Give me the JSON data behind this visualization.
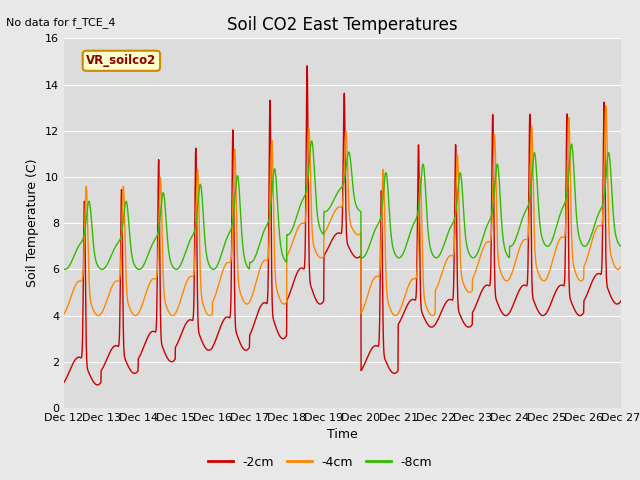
{
  "title": "Soil CO2 East Temperatures",
  "no_data_label": "No data for f_TCE_4",
  "vr_label": "VR_soilco2",
  "xlabel": "Time",
  "ylabel": "Soil Temperature (C)",
  "ylim": [
    0,
    16
  ],
  "fig_bg": "#e8e8e8",
  "axes_bg": "#dcdcdc",
  "colors": {
    "-2cm": "#cc0000",
    "-4cm": "#ff8800",
    "-8cm": "#33bb00"
  },
  "x_tick_labels": [
    "Dec 12",
    "Dec 13",
    "Dec 14",
    "Dec 15",
    "Dec 16",
    "Dec 17",
    "Dec 18",
    "Dec 19",
    "Dec 20",
    "Dec 21",
    "Dec 22",
    "Dec 23",
    "Dec 24",
    "Dec 25",
    "Dec 26",
    "Dec 27"
  ],
  "title_fontsize": 12,
  "axis_label_fontsize": 9,
  "tick_fontsize": 8,
  "legend_fontsize": 9
}
